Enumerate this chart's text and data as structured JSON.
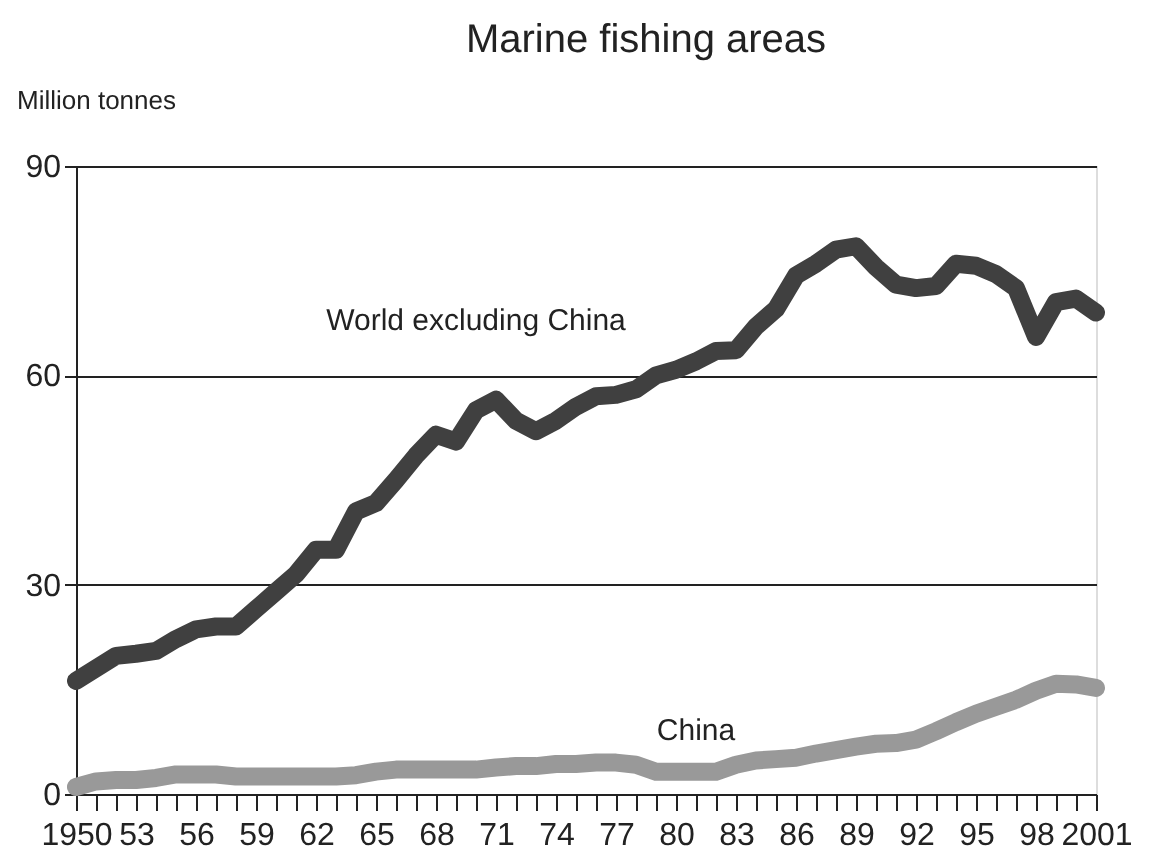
{
  "chart_data": {
    "type": "line",
    "title": "Marine fishing areas",
    "ylabel": "Million tonnes",
    "x": [
      1950,
      1951,
      1952,
      1953,
      1954,
      1955,
      1956,
      1957,
      1958,
      1959,
      1960,
      1961,
      1962,
      1963,
      1964,
      1965,
      1966,
      1967,
      1968,
      1969,
      1970,
      1971,
      1972,
      1973,
      1974,
      1975,
      1976,
      1977,
      1978,
      1979,
      1980,
      1981,
      1982,
      1983,
      1984,
      1985,
      1986,
      1987,
      1988,
      1989,
      1990,
      1991,
      1992,
      1993,
      1994,
      1995,
      1996,
      1997,
      1998,
      1999,
      2000,
      2001
    ],
    "series": [
      {
        "name": "World excluding China",
        "color": "#404040",
        "values": [
          16.2,
          18,
          19.8,
          20.1,
          20.5,
          22.2,
          23.6,
          24,
          24,
          26.5,
          29,
          31.5,
          35,
          35,
          40.5,
          41.7,
          45,
          48.5,
          51.5,
          50.5,
          55,
          56.5,
          53.5,
          52,
          53.5,
          55.5,
          57,
          57.2,
          58,
          60,
          60.8,
          62,
          63.5,
          63.6,
          67,
          69.5,
          74.3,
          76,
          78,
          78.5,
          75.5,
          73,
          72.5,
          72.8,
          76,
          75.7,
          74.5,
          72.5,
          65.5,
          70.5,
          71,
          69
        ]
      },
      {
        "name": "China",
        "color": "#999999",
        "values": [
          1,
          1.8,
          2,
          2,
          2.3,
          2.8,
          2.8,
          2.8,
          2.5,
          2.5,
          2.5,
          2.5,
          2.5,
          2.5,
          2.7,
          3.2,
          3.5,
          3.5,
          3.5,
          3.5,
          3.5,
          3.8,
          4,
          4,
          4.3,
          4.3,
          4.5,
          4.5,
          4.2,
          3.2,
          3.2,
          3.2,
          3.2,
          4.2,
          4.8,
          5,
          5.2,
          5.8,
          6.3,
          6.8,
          7.2,
          7.3,
          7.8,
          9,
          10.3,
          11.5,
          12.5,
          13.5,
          14.8,
          15.8,
          15.7,
          15.2
        ]
      }
    ],
    "xlim": [
      1950,
      2001
    ],
    "ylim": [
      0,
      90
    ],
    "yticks": [
      0,
      30,
      60,
      90
    ],
    "xticks": [
      {
        "value": 1950,
        "label": "1950"
      },
      {
        "value": 1951,
        "label": null
      },
      {
        "value": 1952,
        "label": null
      },
      {
        "value": 1953,
        "label": "53"
      },
      {
        "value": 1954,
        "label": null
      },
      {
        "value": 1955,
        "label": null
      },
      {
        "value": 1956,
        "label": "56"
      },
      {
        "value": 1957,
        "label": null
      },
      {
        "value": 1958,
        "label": null
      },
      {
        "value": 1959,
        "label": "59"
      },
      {
        "value": 1960,
        "label": null
      },
      {
        "value": 1961,
        "label": null
      },
      {
        "value": 1962,
        "label": "62"
      },
      {
        "value": 1963,
        "label": null
      },
      {
        "value": 1964,
        "label": null
      },
      {
        "value": 1965,
        "label": "65"
      },
      {
        "value": 1966,
        "label": null
      },
      {
        "value": 1967,
        "label": null
      },
      {
        "value": 1968,
        "label": "68"
      },
      {
        "value": 1969,
        "label": null
      },
      {
        "value": 1970,
        "label": null
      },
      {
        "value": 1971,
        "label": "71"
      },
      {
        "value": 1972,
        "label": null
      },
      {
        "value": 1973,
        "label": null
      },
      {
        "value": 1974,
        "label": "74"
      },
      {
        "value": 1975,
        "label": null
      },
      {
        "value": 1976,
        "label": null
      },
      {
        "value": 1977,
        "label": "77"
      },
      {
        "value": 1978,
        "label": null
      },
      {
        "value": 1979,
        "label": null
      },
      {
        "value": 1980,
        "label": "80"
      },
      {
        "value": 1981,
        "label": null
      },
      {
        "value": 1982,
        "label": null
      },
      {
        "value": 1983,
        "label": "83"
      },
      {
        "value": 1984,
        "label": null
      },
      {
        "value": 1985,
        "label": null
      },
      {
        "value": 1986,
        "label": "86"
      },
      {
        "value": 1987,
        "label": null
      },
      {
        "value": 1988,
        "label": null
      },
      {
        "value": 1989,
        "label": "89"
      },
      {
        "value": 1990,
        "label": null
      },
      {
        "value": 1991,
        "label": null
      },
      {
        "value": 1992,
        "label": "92"
      },
      {
        "value": 1993,
        "label": null
      },
      {
        "value": 1994,
        "label": null
      },
      {
        "value": 1995,
        "label": "95"
      },
      {
        "value": 1996,
        "label": null
      },
      {
        "value": 1997,
        "label": null
      },
      {
        "value": 1998,
        "label": "98"
      },
      {
        "value": 1999,
        "label": null
      },
      {
        "value": 2000,
        "label": null
      },
      {
        "value": 2001,
        "label": "2001"
      }
    ],
    "grid": "y",
    "legend": false,
    "line_style": "solid"
  }
}
